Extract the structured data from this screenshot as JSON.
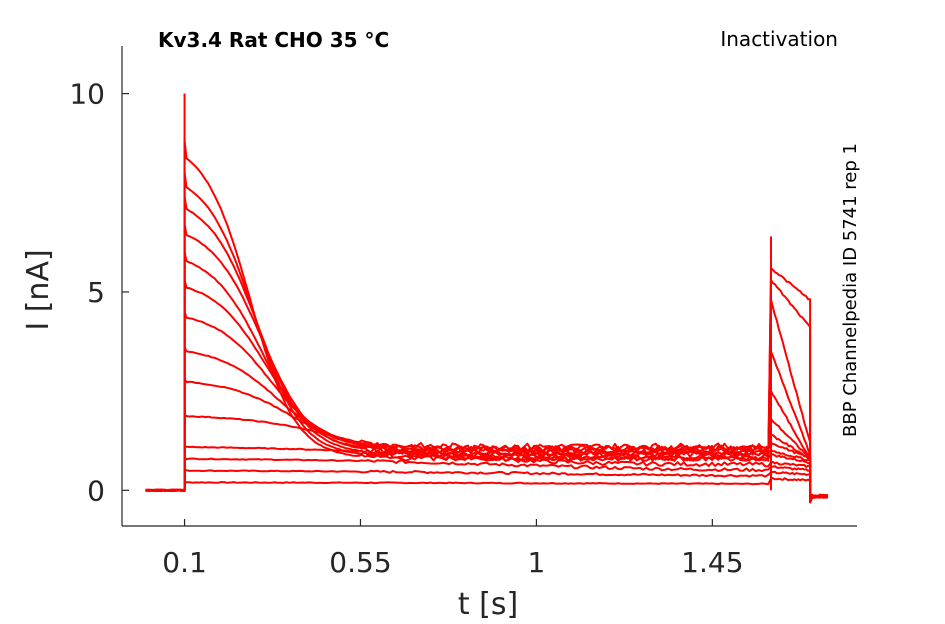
{
  "chart_data": {
    "type": "line",
    "title": "Kv3.4  Rat  CHO  35 °C",
    "protocol": "Inactivation",
    "source_label": "BBP Channelpedia ID 5741 rep 1",
    "xlabel": "t [s]",
    "ylabel": "I [nA]",
    "xlim": [
      -0.06,
      1.82
    ],
    "ylim": [
      -0.9,
      11.2
    ],
    "x_ticks": [
      0.1,
      0.55,
      1,
      1.45
    ],
    "x_tick_labels": [
      "0.1",
      "0.55",
      "1",
      "1.45"
    ],
    "y_ticks": [
      0,
      5,
      10
    ],
    "y_tick_labels": [
      "0",
      "5",
      "10"
    ],
    "grid": false,
    "legend": "none",
    "line_color": "#ff0000",
    "sweeps": [
      {
        "peak": 0.2,
        "steady": 0.15,
        "t_fall": 1.5,
        "tail_peak": 0.3,
        "tail_steady": 0.25
      },
      {
        "peak": 0.5,
        "steady": 0.35,
        "t_fall": 1.2,
        "tail_peak": 0.45,
        "tail_steady": 0.4
      },
      {
        "peak": 0.8,
        "steady": 0.5,
        "t_fall": 1.0,
        "tail_peak": 0.6,
        "tail_steady": 0.5
      },
      {
        "peak": 1.1,
        "steady": 0.65,
        "t_fall": 0.8,
        "tail_peak": 0.7,
        "tail_steady": 0.6
      },
      {
        "peak": 1.9,
        "steady": 0.8,
        "t_fall": 0.5,
        "tail_peak": 0.9,
        "tail_steady": 0.7
      },
      {
        "peak": 2.8,
        "steady": 0.95,
        "t_fall": 0.38,
        "tail_peak": 1.0,
        "tail_steady": 0.75
      },
      {
        "peak": 3.6,
        "steady": 1.05,
        "t_fall": 0.34,
        "tail_peak": 1.2,
        "tail_steady": 0.8
      },
      {
        "peak": 4.5,
        "steady": 1.1,
        "t_fall": 0.32,
        "tail_peak": 1.4,
        "tail_steady": 0.8
      },
      {
        "peak": 5.3,
        "steady": 1.05,
        "t_fall": 0.31,
        "tail_peak": 1.8,
        "tail_steady": 0.8
      },
      {
        "peak": 6.0,
        "steady": 1.0,
        "t_fall": 0.3,
        "tail_peak": 2.5,
        "tail_steady": 0.8
      },
      {
        "peak": 6.7,
        "steady": 0.95,
        "t_fall": 0.3,
        "tail_peak": 3.5,
        "tail_steady": 0.9
      },
      {
        "peak": 7.4,
        "steady": 0.9,
        "t_fall": 0.29,
        "tail_peak": 4.8,
        "tail_steady": 1.2
      },
      {
        "peak": 8.0,
        "steady": 0.85,
        "t_fall": 0.28,
        "tail_peak": 5.3,
        "tail_steady": 4.1
      },
      {
        "peak": 8.8,
        "steady": 0.8,
        "t_fall": 0.27,
        "tail_peak": 5.6,
        "tail_steady": 4.8
      }
    ],
    "artifact_peaks": {
      "step_on": 10.0,
      "step_tail": 6.4
    },
    "time_markers": {
      "pre_start": -0.0,
      "step_on": 0.1,
      "step_off": 1.6,
      "tail_off": 1.7,
      "end": 1.75
    }
  }
}
